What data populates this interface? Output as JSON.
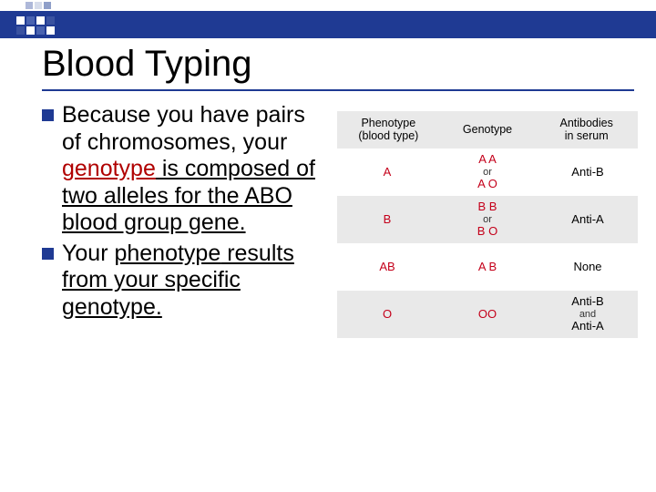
{
  "colors": {
    "brand_blue": "#1f3a93",
    "red": "#c4001a",
    "row_alt": "#e9e9e9",
    "text": "#000000",
    "bg": "#ffffff"
  },
  "title": "Blood Typing",
  "bullets": [
    {
      "prefix": "Because you have pairs of chromosomes, your ",
      "highlight": "genotype",
      "suffix": " is composed of two alleles for the ABO blood group gene."
    },
    {
      "prefix": "Your ",
      "highlight": "phenotype",
      "suffix": " results from your specific genotype."
    }
  ],
  "table": {
    "headers": {
      "phenotype_l1": "Phenotype",
      "phenotype_l2": "(blood type)",
      "genotype": "Genotype",
      "antibodies_l1": "Antibodies",
      "antibodies_l2": "in serum"
    },
    "rows": [
      {
        "phenotype": "A",
        "g1": "A A",
        "or": "or",
        "g2": "A O",
        "antibody": "Anti-B",
        "ab2": ""
      },
      {
        "phenotype": "B",
        "g1": "B B",
        "or": "or",
        "g2": "B O",
        "antibody": "Anti-A",
        "ab2": ""
      },
      {
        "phenotype": "AB",
        "g1": "A B",
        "or": "",
        "g2": "",
        "antibody": "None",
        "ab2": ""
      },
      {
        "phenotype": "O",
        "g1": "OO",
        "or": "",
        "g2": "",
        "antibody": "Anti-B",
        "ab2": "Anti-A",
        "ab_join": "and"
      }
    ]
  }
}
